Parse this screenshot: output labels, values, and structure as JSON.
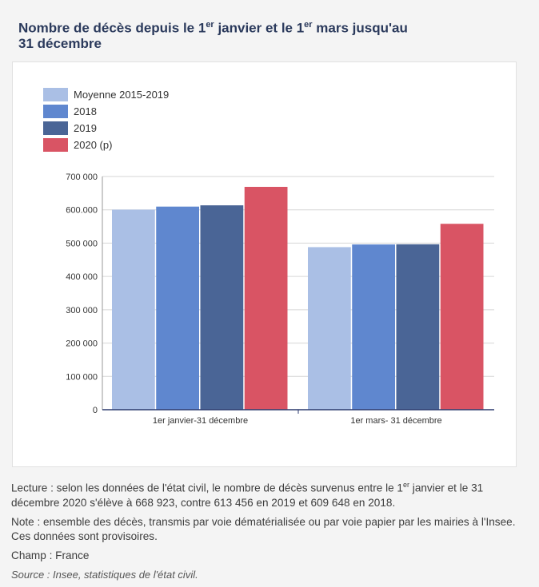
{
  "title": {
    "part1": "Nombre de décès depuis le 1",
    "sup1": "er",
    "part2": " janvier et le 1",
    "sup2": "er",
    "part3": " mars jusqu'au",
    "line2": "31 décembre"
  },
  "colors": {
    "moyenne": "#aabfe5",
    "y2018": "#5f87cf",
    "y2019": "#4a6596",
    "y2020": "#d95464",
    "axis": "#2b3a6e",
    "grid": "#d6d6d6"
  },
  "chart_data": {
    "type": "bar",
    "categories": [
      "1er janvier-31 décembre",
      "1er mars- 31 décembre"
    ],
    "series": [
      {
        "name": "Moyenne 2015-2019",
        "values": [
          600500,
          488000
        ]
      },
      {
        "name": "2018",
        "values": [
          609648,
          496000
        ]
      },
      {
        "name": "2019",
        "values": [
          613456,
          496500
        ]
      },
      {
        "name": "2020 (p)",
        "values": [
          668923,
          558000
        ]
      }
    ],
    "ylim": [
      0,
      700000
    ],
    "yticks": [
      0,
      100000,
      200000,
      300000,
      400000,
      500000,
      600000,
      700000
    ],
    "ytick_labels": [
      "0",
      "100 000",
      "200 000",
      "300 000",
      "400 000",
      "500 000",
      "600.000",
      "700 000"
    ],
    "legend_position": "top-left",
    "grid": true
  },
  "notes": {
    "lecture_a": "Lecture : selon les données de l'état civil, le nombre de décès survenus entre le 1",
    "lecture_sup": "er",
    "lecture_b": " janvier et le 31 décembre 2020 s'élève à 668 923, contre 613 456 en 2019 et 609 648 en 2018.",
    "note": "Note : ensemble des décès, transmis par voie dématérialisée ou par voie papier par les mairies à l'Insee. Ces données sont provisoires.",
    "champ": "Champ : France",
    "source": "Source : Insee, statistiques de l'état civil."
  }
}
